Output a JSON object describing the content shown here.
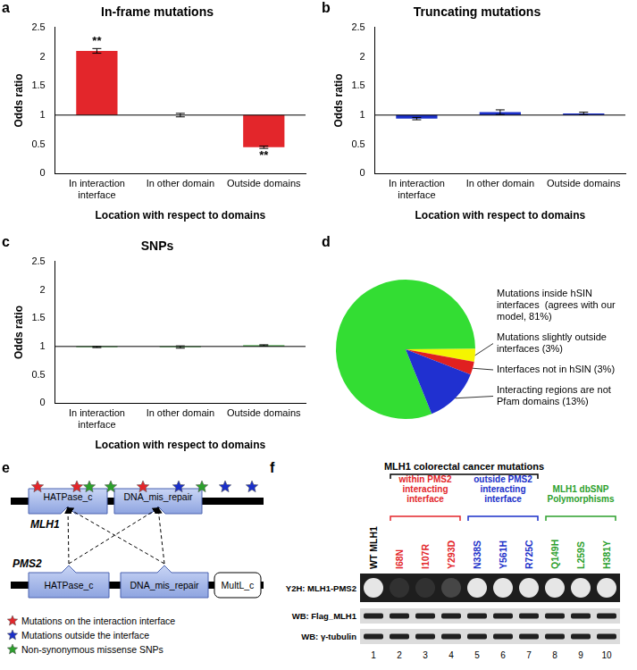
{
  "chart_data": [
    {
      "panel": "a",
      "type": "bar",
      "title": "In-frame mutations",
      "categories": [
        "In interaction interface",
        "In other domain",
        "Outside domains"
      ],
      "values": [
        2.1,
        1.0,
        0.45
      ],
      "errors": [
        0.04,
        0.03,
        0.02
      ],
      "base": 1,
      "color": "#e3262b",
      "x_label": "Location with respect to domains",
      "y_label": "Odds ratio",
      "ylim": [
        0,
        2.5
      ],
      "yticks": [
        0,
        0.5,
        1,
        1.5,
        2,
        2.5
      ],
      "grid": false,
      "annotations": [
        {
          "category": "In interaction interface",
          "text": "**"
        },
        {
          "category": "Outside domains",
          "text": "**"
        }
      ]
    },
    {
      "panel": "b",
      "type": "bar",
      "title": "Truncating mutations",
      "categories": [
        "In interaction interface",
        "In other domain",
        "Outside domains"
      ],
      "values": [
        0.94,
        1.05,
        1.03
      ],
      "errors": [
        0.02,
        0.04,
        0.02
      ],
      "base": 1,
      "color": "#1a2fc9",
      "x_label": "Location with respect to domains",
      "y_label": "Odds ratio",
      "ylim": [
        0,
        2.5
      ],
      "yticks": [
        0,
        0.5,
        1,
        1.5,
        2,
        2.5
      ],
      "grid": false
    },
    {
      "panel": "c",
      "type": "bar",
      "title": "SNPs",
      "categories": [
        "In interaction interface",
        "In other domain",
        "Outside domains"
      ],
      "values": [
        0.99,
        0.99,
        1.02
      ],
      "errors": [
        0.01,
        0.02,
        0.01
      ],
      "base": 1,
      "color": "#2ca02c",
      "x_label": "Location with respect to domains",
      "y_label": "Odds ratio",
      "ylim": [
        0,
        2.5
      ],
      "yticks": [
        0,
        0.5,
        1,
        1.5,
        2,
        2.5
      ],
      "grid": false
    },
    {
      "panel": "d",
      "type": "pie",
      "categories": [
        "Mutations inside hSIN interfaces  (agrees with our model, 81%)",
        "Mutations slightly outside interfaces (3%)",
        "Interfaces not in hSIN (3%)",
        "Interacting regions are not Pfam domains (13%)"
      ],
      "values": [
        81,
        3,
        3,
        13
      ],
      "colors": [
        "#33dd33",
        "#f5f500",
        "#e02020",
        "#2030d0"
      ]
    }
  ],
  "diagram": {
    "panel": "e",
    "proteins": [
      {
        "name": "MLH1",
        "domains": [
          "HATPase_c",
          "DNA_mis_repair"
        ],
        "marks": [
          "interface",
          "interface",
          "snp",
          "snp",
          "interface",
          "outside",
          "snp",
          "outside",
          "outside"
        ]
      },
      {
        "name": "PMS2",
        "domains": [
          "HATPase_c",
          "DNA_mis_repair",
          "MultL_c"
        ]
      }
    ],
    "interactions": [
      [
        0,
        0
      ],
      [
        0,
        1
      ],
      [
        1,
        0
      ],
      [
        1,
        1
      ]
    ],
    "legend": [
      {
        "kind": "interface",
        "label": "Mutations on the interaction interface",
        "color": "#e3262b"
      },
      {
        "kind": "outside",
        "label": "Mutations outside the interface",
        "color": "#1a2fc9"
      },
      {
        "kind": "snp",
        "label": "Non-synonymous missense SNPs",
        "color": "#2ca02c"
      }
    ]
  },
  "blot": {
    "panel": "f",
    "header": {
      "label": "MLH1 colorectal cancer mutations",
      "lanes": [
        2,
        7
      ]
    },
    "groups": [
      {
        "label": "within PMS2 interacting interface",
        "color": "#e3262b",
        "lanes": [
          2,
          4
        ]
      },
      {
        "label": "outside PMS2 interacting interface",
        "color": "#1a2fc9",
        "lanes": [
          5,
          7
        ]
      },
      {
        "label": "MLH1 dbSNP Polymorphisms",
        "color": "#2ca02c",
        "lanes": [
          8,
          10
        ]
      }
    ],
    "lanes": [
      {
        "number": 1,
        "label": "WT MLH1",
        "y2h": 1
      },
      {
        "number": 2,
        "label": "I68N",
        "y2h": 0.1
      },
      {
        "number": 3,
        "label": "I107R",
        "y2h": 0.1
      },
      {
        "number": 4,
        "label": "Y293D",
        "y2h": 0.2
      },
      {
        "number": 5,
        "label": "N338S",
        "y2h": 1
      },
      {
        "number": 6,
        "label": "Y561H",
        "y2h": 1
      },
      {
        "number": 7,
        "label": "R725C",
        "y2h": 1
      },
      {
        "number": 8,
        "label": "Q149H",
        "y2h": 1
      },
      {
        "number": 9,
        "label": "L259S",
        "y2h": 1
      },
      {
        "number": 10,
        "label": "H381Y",
        "y2h": 1
      }
    ],
    "rows": [
      "Y2H: MLH1-PMS2",
      "WB: Flag_MLH1",
      "WB: γ-tubulin"
    ]
  }
}
